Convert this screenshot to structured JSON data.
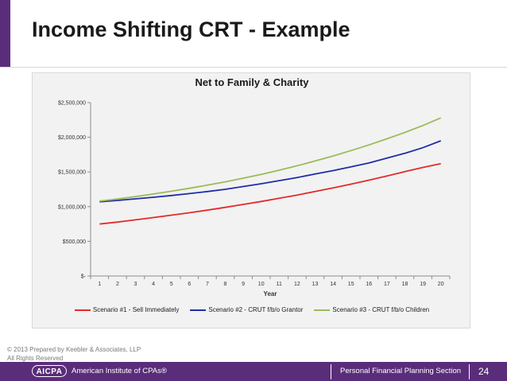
{
  "slide": {
    "title": "Income Shifting CRT - Example",
    "copyright_line1": "© 2013 Prepared by Keebler & Associates, LLP",
    "copyright_line2": "All Rights Reserved"
  },
  "footer": {
    "logo_text": "AICPA",
    "org_name": "American Institute of CPAs®",
    "section": "Personal Financial Planning Section",
    "page_number": "24"
  },
  "colors": {
    "brand_purple": "#5a2d7a",
    "series_red": "#e32b2b",
    "series_blue": "#1f2ea8",
    "series_green": "#9bbb59"
  },
  "chart_data": {
    "type": "line",
    "title": "Net to Family & Charity",
    "xlabel": "Year",
    "ylabel": "",
    "x": [
      1,
      2,
      3,
      4,
      5,
      6,
      7,
      8,
      9,
      10,
      11,
      12,
      13,
      14,
      15,
      16,
      17,
      18,
      19,
      20
    ],
    "ylim": [
      0,
      2500000
    ],
    "yticks": [
      0,
      500000,
      1000000,
      1500000,
      2000000,
      2500000
    ],
    "ytick_labels": [
      "$-",
      "$500,000",
      "$1,000,000",
      "$1,500,000",
      "$2,000,000",
      "$2,500,000"
    ],
    "grid": false,
    "legend": "bottom",
    "series": [
      {
        "name": "Scenario #1 - Sell Immediately",
        "color": "#e32b2b",
        "values": [
          750000,
          778000,
          810000,
          843000,
          877000,
          912000,
          950000,
          990000,
          1032000,
          1075000,
          1120000,
          1168000,
          1218000,
          1270000,
          1325000,
          1382000,
          1442000,
          1505000,
          1565000,
          1620000
        ]
      },
      {
        "name": "Scenario #2 - CRUT f/b/o Grantor",
        "color": "#1f2ea8",
        "values": [
          1070000,
          1090000,
          1112000,
          1135000,
          1160000,
          1188000,
          1218000,
          1250000,
          1290000,
          1330000,
          1375000,
          1420000,
          1470000,
          1520000,
          1575000,
          1630000,
          1700000,
          1770000,
          1850000,
          1950000
        ]
      },
      {
        "name": "Scenario #3 - CRUT f/b/o Children",
        "color": "#9bbb59",
        "values": [
          1080000,
          1110000,
          1145000,
          1182000,
          1222000,
          1265000,
          1310000,
          1358000,
          1410000,
          1465000,
          1525000,
          1590000,
          1658000,
          1730000,
          1808000,
          1890000,
          1978000,
          2070000,
          2170000,
          2280000
        ]
      }
    ]
  }
}
